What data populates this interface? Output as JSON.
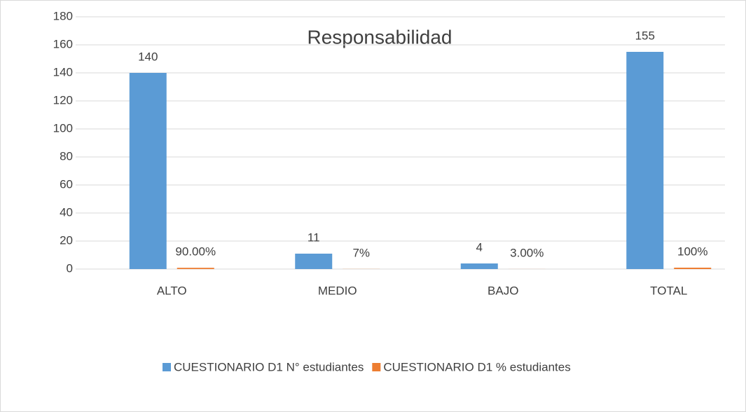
{
  "chart_data": {
    "type": "bar",
    "title": "Responsabilidad",
    "categories": [
      "ALTO",
      "MEDIO",
      "BAJO",
      "TOTAL"
    ],
    "series": [
      {
        "name": "CUESTIONARIO D1 N° estudiantes",
        "color": "#5b9bd5",
        "values": [
          140,
          11,
          4,
          155
        ]
      },
      {
        "name": "CUESTIONARIO D1 % estudiantes",
        "color": "#ed7d31",
        "values": [
          0.9,
          0.07,
          0.03,
          1
        ],
        "value_labels": [
          "90.00%",
          "7%",
          "3.00%",
          "100%"
        ]
      }
    ],
    "ylim": [
      0,
      180
    ],
    "yticks": [
      0,
      20,
      40,
      60,
      80,
      100,
      120,
      140,
      160,
      180
    ],
    "grid": true,
    "legend": "bottom"
  }
}
